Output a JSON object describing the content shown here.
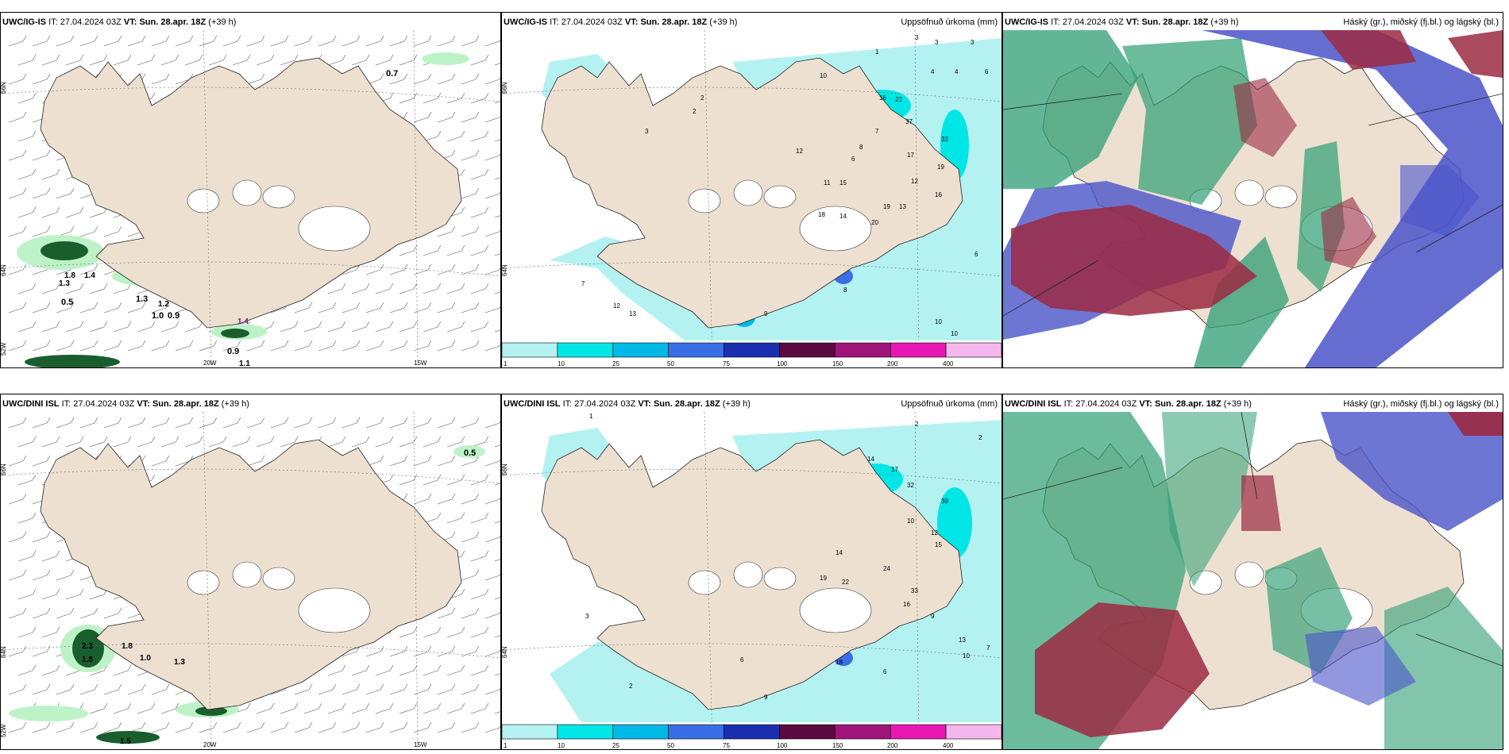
{
  "colors": {
    "land": "#ede0d1",
    "sea_precip_light": "#b4f2f2",
    "wind_barb": "#555555",
    "green_light": "#bdf2c6",
    "green_dark": "#1a5e2e",
    "cloud_high": "#2e9e74",
    "cloud_mid": "#9b2a43",
    "cloud_low": "#4a54c9"
  },
  "row_top": {
    "wind": {
      "model": "UWC/IG-IS",
      "it_label": "IT:",
      "it_value": "27.04.2024 03Z",
      "vt_label": "VT:",
      "vt_value": "Sun. 28.apr. 18Z",
      "lead": "(+39 h)",
      "lat_labels": [
        "66N",
        "64N",
        "52W"
      ],
      "lon_labels": [
        "20W",
        "15W"
      ],
      "values": [
        "0.7",
        "0.5",
        "1.8",
        "1.3",
        "1.2",
        "1.4",
        "1.3",
        "1.0",
        "0.9",
        "1.1",
        "0.9",
        "1.4"
      ]
    },
    "precip": {
      "model": "UWC/IG-IS",
      "it_label": "IT:",
      "it_value": "27.04.2024 03Z",
      "vt_label": "VT:",
      "vt_value": "Sun. 28.apr. 18Z",
      "lead": "(+39 h)",
      "right_title": "Uppsöfnuð úrkoma (mm)",
      "lat_labels": [
        "66N",
        "64N"
      ],
      "values": [
        "3",
        "3",
        "1",
        "3",
        "2",
        "10",
        "16",
        "22",
        "4",
        "4",
        "6",
        "37",
        "32",
        "17",
        "19",
        "12",
        "15",
        "11",
        "20",
        "19",
        "13",
        "18",
        "14",
        "16",
        "7",
        "8",
        "6",
        "12",
        "6",
        "10",
        "10",
        "13",
        "7",
        "12",
        "2",
        "3",
        "8",
        "9"
      ]
    },
    "cloud": {
      "model": "UWC/IG-IS",
      "it_label": "IT:",
      "it_value": "27.04.2024 03Z",
      "vt_label": "VT:",
      "vt_value": "Sun. 28.apr. 18Z",
      "lead": "(+39 h)",
      "right_title": "Háský (gr.), miðský (fj.bl.) og lágský (bl.)"
    }
  },
  "row_bottom": {
    "wind": {
      "model": "UWC/DINI ISL",
      "it_label": "IT:",
      "it_value": "27.04.2024 03Z",
      "vt_label": "VT:",
      "vt_value": "Sun. 28.apr. 18Z",
      "lead": "(+39 h)",
      "lat_labels": [
        "66N",
        "64N",
        "52W"
      ],
      "lon_labels": [
        "20W",
        "15W"
      ],
      "values": [
        "0.5",
        "2.3",
        "1.8",
        "1.8",
        "1.0",
        "1.3",
        "1.5"
      ]
    },
    "precip": {
      "model": "UWC/DINI ISL",
      "it_label": "IT:",
      "it_value": "27.04.2024 03Z",
      "vt_label": "VT:",
      "vt_value": "Sun. 28.apr. 18Z",
      "lead": "(+39 h)",
      "right_title": "Uppsöfnuð úrkoma (mm)",
      "lat_labels": [
        "66N",
        "64N"
      ],
      "values": [
        "2",
        "2",
        "1",
        "14",
        "17",
        "32",
        "39",
        "24",
        "19",
        "22",
        "15",
        "33",
        "16",
        "14",
        "10",
        "12",
        "9",
        "13",
        "10",
        "7",
        "6",
        "2",
        "3",
        "18",
        "9",
        "6"
      ]
    },
    "cloud": {
      "model": "UWC/DINI ISL",
      "it_label": "IT:",
      "it_value": "27.04.2024 03Z",
      "vt_label": "VT:",
      "vt_value": "Sun. 28.apr. 18Z",
      "lead": "(+39 h)",
      "right_title": "Háský (gr.), miðský (fj.bl.) og lágský (bl.)"
    }
  },
  "colorbar": {
    "ticks": [
      "1",
      "10",
      "25",
      "50",
      "75",
      "100",
      "150",
      "200",
      "400"
    ],
    "colors": [
      "#b4f2f2",
      "#00e6e6",
      "#00b9e6",
      "#3a6ee6",
      "#1a2fb0",
      "#5a0a3e",
      "#a0157a",
      "#e818b4",
      "#f4b6ec"
    ]
  }
}
